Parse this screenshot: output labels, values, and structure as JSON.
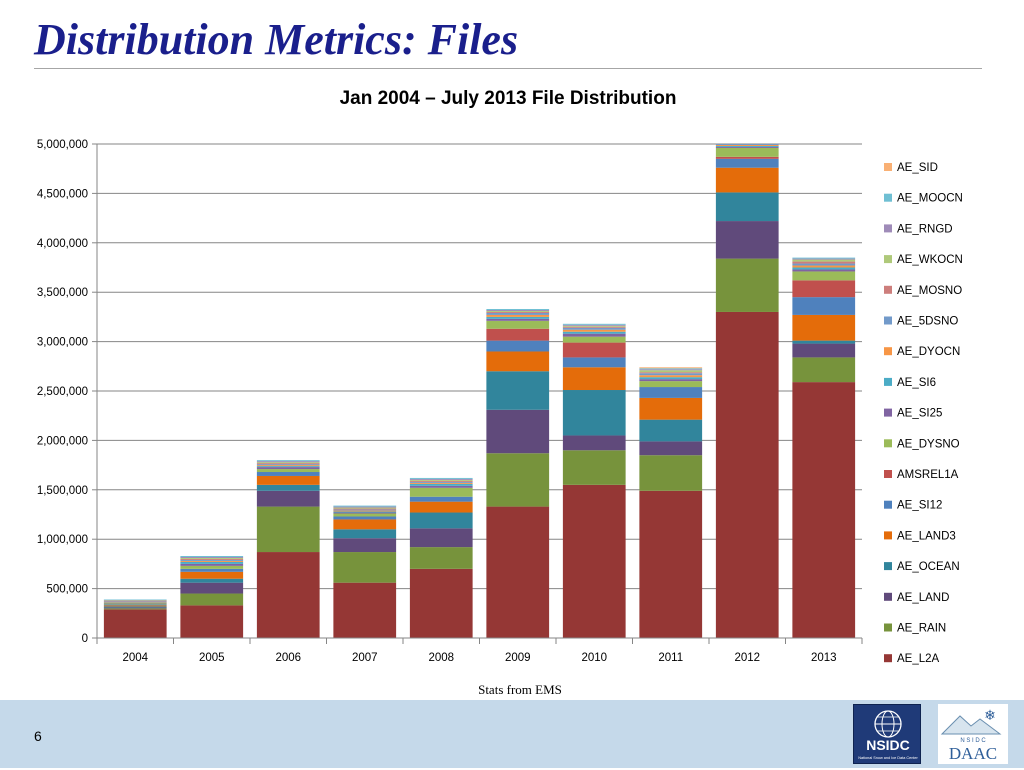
{
  "slide": {
    "title": "Distribution Metrics: Files",
    "source_note": "Stats from EMS",
    "page_number": "6"
  },
  "logos": {
    "nsidc_text": "NSIDC",
    "nsidc_subtext": "National Snow and Ice Data Center",
    "daac_text": "DAAC",
    "daac_subtext": "N S I D C"
  },
  "chart_data": {
    "type": "bar",
    "stacked": true,
    "title": "Jan 2004 – July 2013 File Distribution",
    "xlabel": "",
    "ylabel": "",
    "ylim": [
      0,
      5000000
    ],
    "yticks": [
      0,
      500000,
      1000000,
      1500000,
      2000000,
      2500000,
      3000000,
      3500000,
      4000000,
      4500000,
      5000000
    ],
    "ytick_labels": [
      "0",
      "500,000",
      "1,000,000",
      "1,500,000",
      "2,000,000",
      "2,500,000",
      "3,000,000",
      "3,500,000",
      "4,000,000",
      "4,500,000",
      "5,000,000"
    ],
    "grid": "horizontal",
    "legend": "right",
    "categories": [
      "2004",
      "2005",
      "2006",
      "2007",
      "2008",
      "2009",
      "2010",
      "2011",
      "2012",
      "2013"
    ],
    "series": [
      {
        "name": "AE_L2A",
        "color": "#953735",
        "values": [
          290000,
          330000,
          870000,
          560000,
          700000,
          1330000,
          1550000,
          1490000,
          3300000,
          2590000
        ]
      },
      {
        "name": "AE_RAIN",
        "color": "#77933c",
        "values": [
          10000,
          120000,
          460000,
          310000,
          220000,
          540000,
          350000,
          360000,
          540000,
          250000
        ]
      },
      {
        "name": "AE_LAND",
        "color": "#604a7b",
        "values": [
          10000,
          110000,
          160000,
          140000,
          190000,
          440000,
          150000,
          140000,
          380000,
          140000
        ]
      },
      {
        "name": "AE_OCEAN",
        "color": "#31859c",
        "values": [
          10000,
          40000,
          60000,
          90000,
          160000,
          390000,
          460000,
          220000,
          290000,
          30000
        ]
      },
      {
        "name": "AE_LAND3",
        "color": "#e46c0a",
        "values": [
          10000,
          70000,
          90000,
          100000,
          110000,
          200000,
          230000,
          220000,
          250000,
          260000
        ]
      },
      {
        "name": "AE_SI12",
        "color": "#4f81bd",
        "values": [
          10000,
          30000,
          40000,
          30000,
          50000,
          110000,
          100000,
          110000,
          90000,
          180000
        ]
      },
      {
        "name": "AMSREL1A",
        "color": "#c0504d",
        "values": [
          0,
          0,
          0,
          0,
          0,
          120000,
          150000,
          0,
          20000,
          170000
        ]
      },
      {
        "name": "AE_DYSNO",
        "color": "#9bbb59",
        "values": [
          10000,
          30000,
          30000,
          30000,
          90000,
          80000,
          60000,
          60000,
          90000,
          90000
        ]
      },
      {
        "name": "AE_SI25",
        "color": "#8064a2",
        "values": [
          5000,
          20000,
          20000,
          10000,
          20000,
          20000,
          30000,
          20000,
          10000,
          20000
        ]
      },
      {
        "name": "AE_SI6",
        "color": "#4bacc6",
        "values": [
          5000,
          20000,
          10000,
          10000,
          20000,
          20000,
          20000,
          20000,
          10000,
          20000
        ]
      },
      {
        "name": "AE_DYOCN",
        "color": "#f79646",
        "values": [
          5000,
          10000,
          10000,
          10000,
          10000,
          20000,
          20000,
          20000,
          10000,
          20000
        ]
      },
      {
        "name": "AE_5DSNO",
        "color": "#729aca",
        "values": [
          5000,
          10000,
          10000,
          10000,
          10000,
          20000,
          20000,
          20000,
          10000,
          20000
        ]
      },
      {
        "name": "AE_MOSNO",
        "color": "#cd7e7c",
        "values": [
          5000,
          10000,
          10000,
          10000,
          10000,
          10000,
          10000,
          10000,
          0,
          20000
        ]
      },
      {
        "name": "AE_WKOCN",
        "color": "#afc97a",
        "values": [
          5000,
          10000,
          10000,
          10000,
          10000,
          10000,
          10000,
          20000,
          0,
          20000
        ]
      },
      {
        "name": "AE_RNGD",
        "color": "#9f8bb8",
        "values": [
          5000,
          10000,
          10000,
          10000,
          10000,
          10000,
          10000,
          10000,
          0,
          10000
        ]
      },
      {
        "name": "AE_MOOCN",
        "color": "#6fbfd3",
        "values": [
          5000,
          10000,
          10000,
          10000,
          10000,
          10000,
          10000,
          10000,
          0,
          10000
        ]
      },
      {
        "name": "AE_SID",
        "color": "#f9b074",
        "values": [
          0,
          0,
          0,
          0,
          0,
          0,
          0,
          10000,
          0,
          0
        ]
      }
    ]
  }
}
